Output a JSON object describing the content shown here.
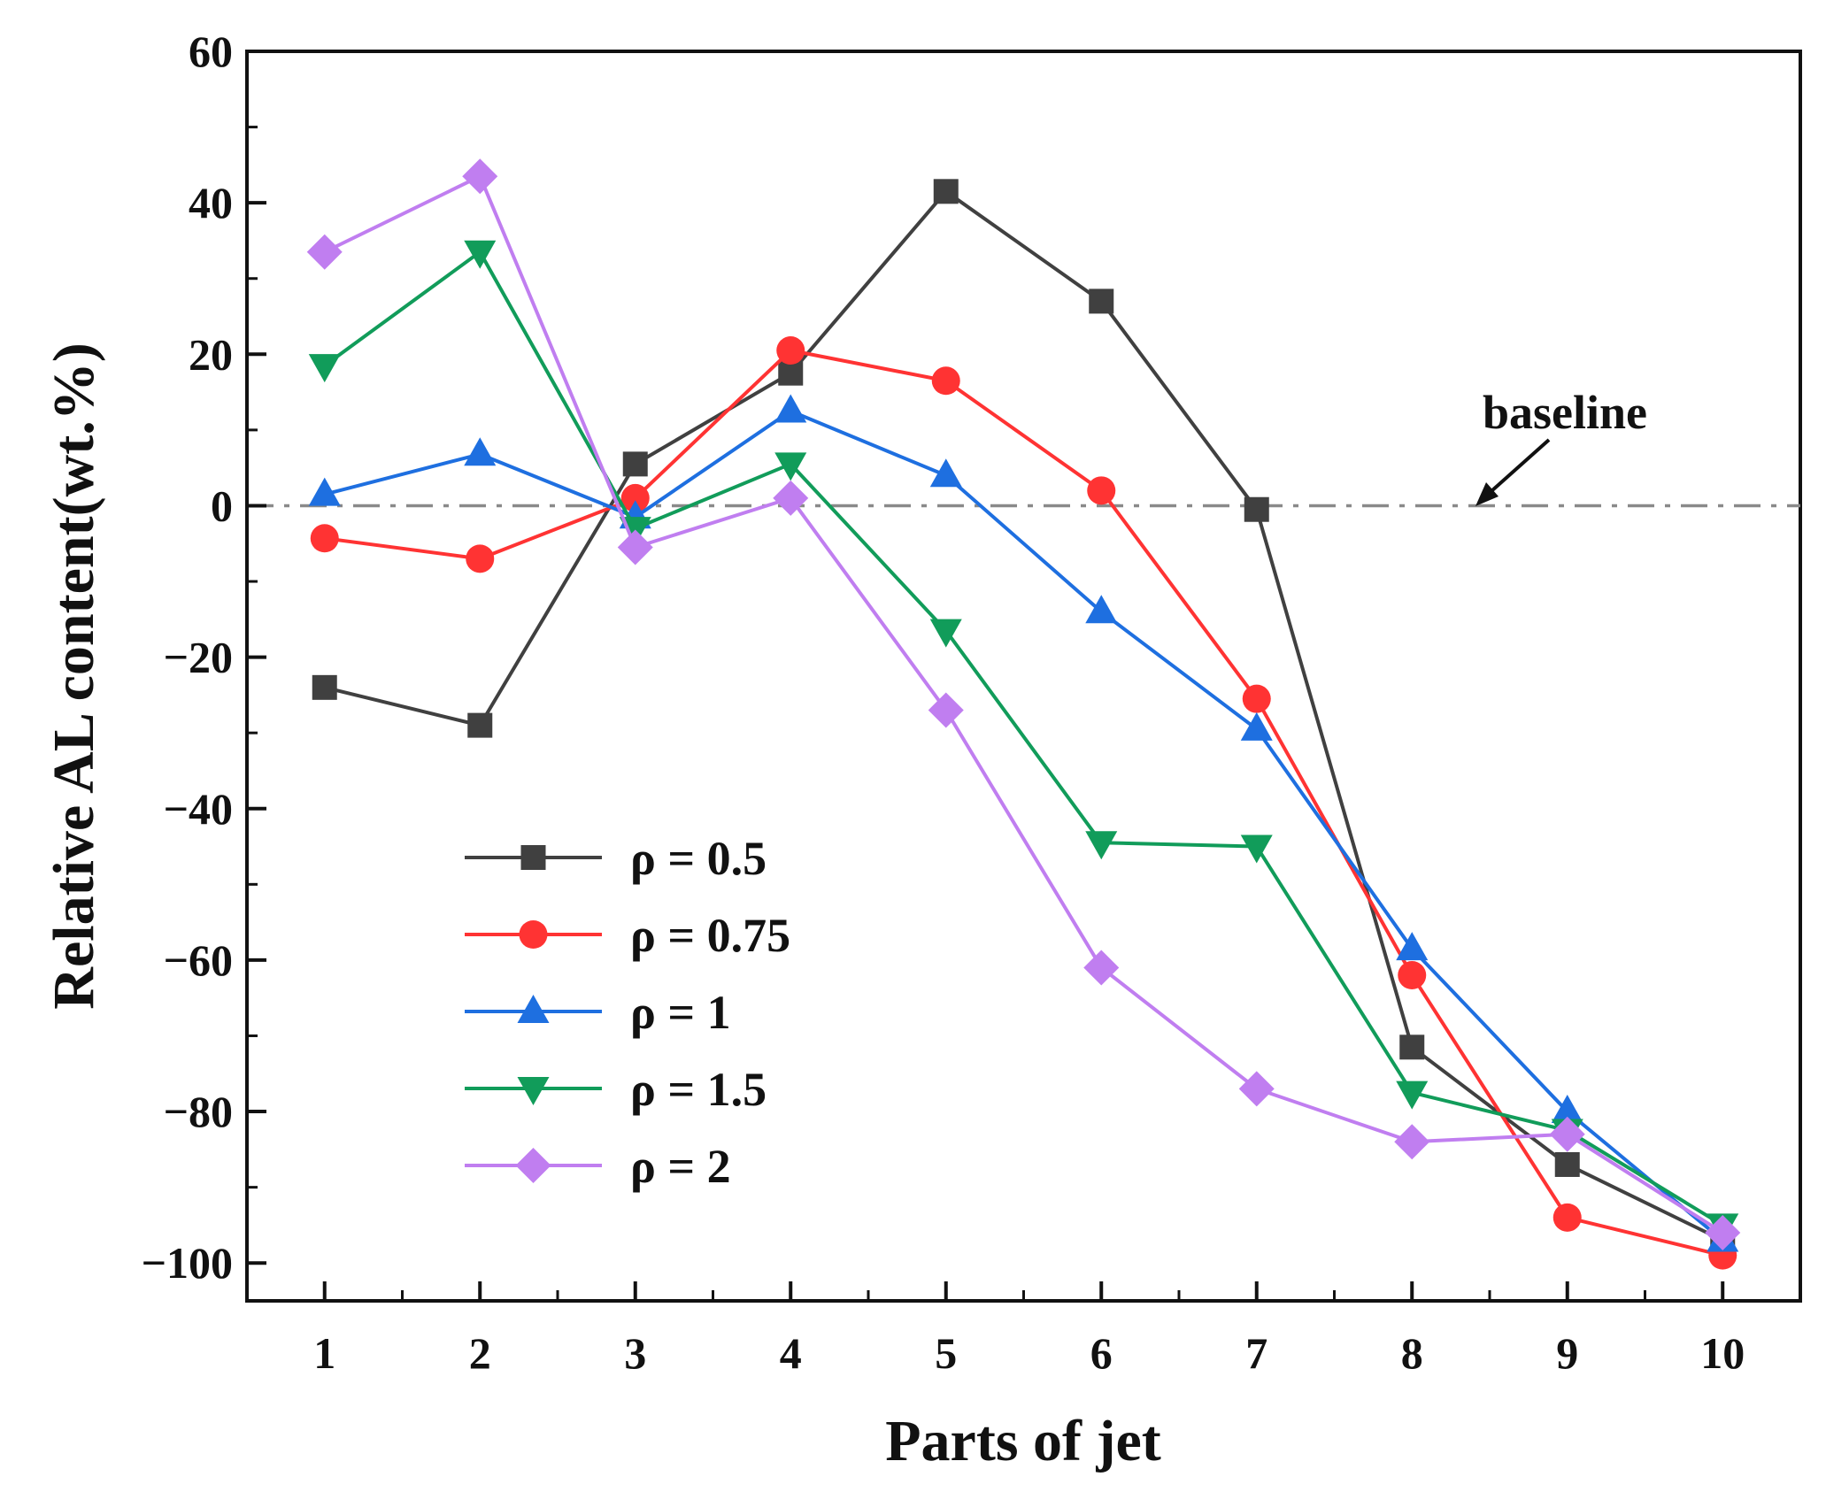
{
  "chart_data": {
    "type": "line",
    "title": "",
    "xlabel": "Parts of jet",
    "ylabel": "Relative AL content(wt.%)",
    "x": [
      1,
      2,
      3,
      4,
      5,
      6,
      7,
      8,
      9,
      10
    ],
    "x_tick_labels": [
      "1",
      "2",
      "3",
      "4",
      "5",
      "6",
      "7",
      "8",
      "9",
      "10"
    ],
    "xlim": [
      0.5,
      10.5
    ],
    "ylim": [
      -105,
      60
    ],
    "y_ticks": [
      -100,
      -80,
      -60,
      -40,
      -20,
      0,
      20,
      40,
      60
    ],
    "y_tick_labels": [
      "−100",
      "−80",
      "−60",
      "−40",
      "−20",
      "0",
      "20",
      "40",
      "60"
    ],
    "grid": false,
    "legend_position": "bottom-left",
    "series": [
      {
        "name": "ρ = 0.5",
        "marker": "square",
        "color": "#404040",
        "values": [
          -24,
          -29,
          5.5,
          17.5,
          41.5,
          27,
          -0.5,
          -71.5,
          -87,
          -97
        ]
      },
      {
        "name": "ρ = 0.75",
        "marker": "circle",
        "color": "#ff3333",
        "values": [
          -4.3,
          -7,
          1,
          20.5,
          16.5,
          2,
          -25.5,
          -62,
          -94,
          -99
        ]
      },
      {
        "name": "ρ = 1",
        "marker": "triangle-up",
        "color": "#1e6fe0",
        "values": [
          1.5,
          6.8,
          -1.5,
          12.5,
          4,
          -14,
          -29.5,
          -58.5,
          -80,
          -97
        ]
      },
      {
        "name": "ρ = 1.5",
        "marker": "triangle-down",
        "color": "#119c5a",
        "values": [
          18.5,
          33.5,
          -3,
          5.5,
          -16.5,
          -44.5,
          -45,
          -77.5,
          -82.5,
          -95
        ]
      },
      {
        "name": "ρ = 2",
        "marker": "diamond",
        "color": "#c07ef0",
        "values": [
          33.5,
          43.5,
          -5.5,
          1,
          -27,
          -61,
          -77,
          -84,
          -83,
          -96
        ]
      }
    ],
    "baseline": {
      "label": "baseline",
      "value": 0,
      "color": "#8a8a8a"
    }
  }
}
